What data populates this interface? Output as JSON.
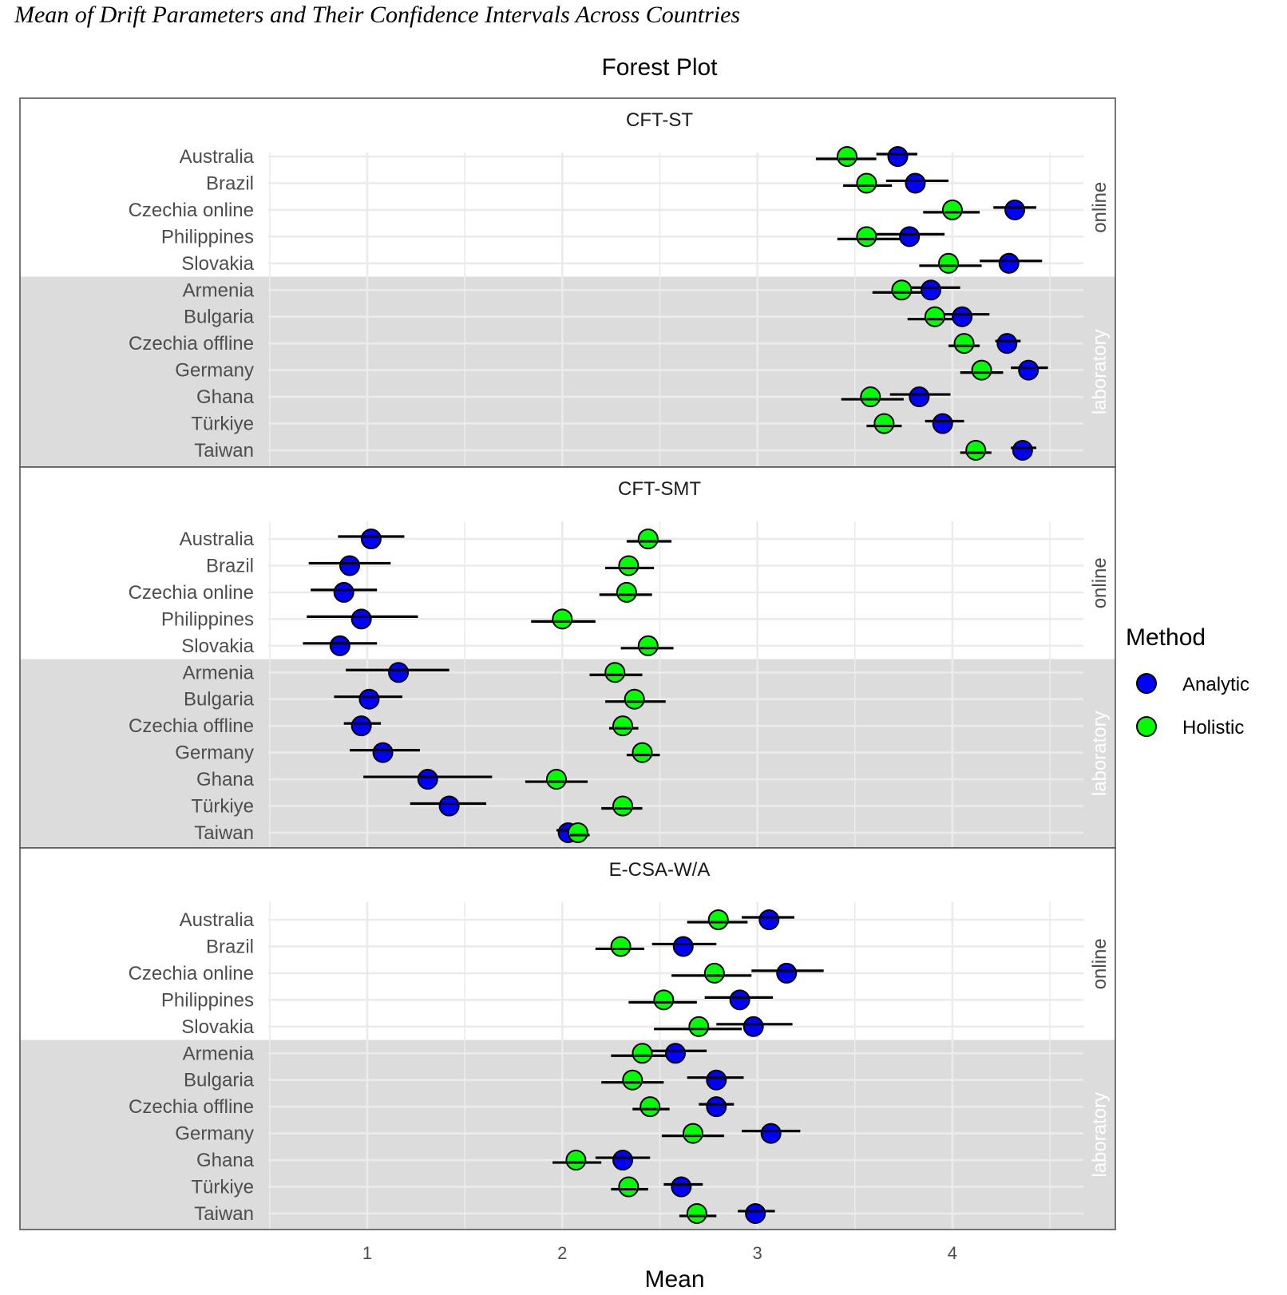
{
  "page_title": "Mean of Drift Parameters and Their Confidence Intervals Across Countries",
  "chart_data": {
    "type": "scatter",
    "subtype": "forest-plot",
    "title": "Forest Plot",
    "xlabel": "Mean",
    "ylabel": "",
    "xlim": [
      0.5,
      4.67
    ],
    "x_ticks": [
      1,
      2,
      3,
      4
    ],
    "grid": true,
    "legend": {
      "title": "Method",
      "placement": "right",
      "entries": [
        {
          "name": "Analytic",
          "color": "#0000ff"
        },
        {
          "name": "Holistic",
          "color": "#00ff00"
        }
      ]
    },
    "row_groups": [
      {
        "name": "online",
        "rows": [
          "Australia",
          "Brazil",
          "Czechia online",
          "Philippines",
          "Slovakia"
        ]
      },
      {
        "name": "laboratory",
        "rows": [
          "Armenia",
          "Bulgaria",
          "Czechia offline",
          "Germany",
          "Ghana",
          "Türkiye",
          "Taiwan"
        ]
      }
    ],
    "panels": [
      {
        "name": "CFT-ST",
        "series": [
          {
            "name": "Analytic",
            "points": [
              {
                "row": "Australia",
                "mean": 3.72,
                "lo": 3.61,
                "hi": 3.82
              },
              {
                "row": "Brazil",
                "mean": 3.81,
                "lo": 3.66,
                "hi": 3.98
              },
              {
                "row": "Czechia online",
                "mean": 4.32,
                "lo": 4.21,
                "hi": 4.43
              },
              {
                "row": "Philippines",
                "mean": 3.78,
                "lo": 3.61,
                "hi": 3.96
              },
              {
                "row": "Slovakia",
                "mean": 4.29,
                "lo": 4.14,
                "hi": 4.46
              },
              {
                "row": "Armenia",
                "mean": 3.89,
                "lo": 3.72,
                "hi": 4.04
              },
              {
                "row": "Bulgaria",
                "mean": 4.05,
                "lo": 3.88,
                "hi": 4.19
              },
              {
                "row": "Czechia offline",
                "mean": 4.28,
                "lo": 4.22,
                "hi": 4.35
              },
              {
                "row": "Germany",
                "mean": 4.39,
                "lo": 4.3,
                "hi": 4.49
              },
              {
                "row": "Ghana",
                "mean": 3.83,
                "lo": 3.68,
                "hi": 3.99
              },
              {
                "row": "Türkiye",
                "mean": 3.95,
                "lo": 3.86,
                "hi": 4.06
              },
              {
                "row": "Taiwan",
                "mean": 4.36,
                "lo": 4.3,
                "hi": 4.43
              }
            ]
          },
          {
            "name": "Holistic",
            "points": [
              {
                "row": "Australia",
                "mean": 3.46,
                "lo": 3.3,
                "hi": 3.61
              },
              {
                "row": "Brazil",
                "mean": 3.56,
                "lo": 3.44,
                "hi": 3.69
              },
              {
                "row": "Czechia online",
                "mean": 4.0,
                "lo": 3.85,
                "hi": 4.14
              },
              {
                "row": "Philippines",
                "mean": 3.56,
                "lo": 3.41,
                "hi": 3.73
              },
              {
                "row": "Slovakia",
                "mean": 3.98,
                "lo": 3.83,
                "hi": 4.15
              },
              {
                "row": "Armenia",
                "mean": 3.74,
                "lo": 3.59,
                "hi": 3.89
              },
              {
                "row": "Bulgaria",
                "mean": 3.91,
                "lo": 3.77,
                "hi": 4.05
              },
              {
                "row": "Czechia offline",
                "mean": 4.06,
                "lo": 3.98,
                "hi": 4.14
              },
              {
                "row": "Germany",
                "mean": 4.15,
                "lo": 4.04,
                "hi": 4.26
              },
              {
                "row": "Ghana",
                "mean": 3.58,
                "lo": 3.43,
                "hi": 3.75
              },
              {
                "row": "Türkiye",
                "mean": 3.65,
                "lo": 3.56,
                "hi": 3.74
              },
              {
                "row": "Taiwan",
                "mean": 4.12,
                "lo": 4.04,
                "hi": 4.2
              }
            ]
          }
        ]
      },
      {
        "name": "CFT-SMT",
        "series": [
          {
            "name": "Analytic",
            "points": [
              {
                "row": "Australia",
                "mean": 1.02,
                "lo": 0.85,
                "hi": 1.19
              },
              {
                "row": "Brazil",
                "mean": 0.91,
                "lo": 0.7,
                "hi": 1.12
              },
              {
                "row": "Czechia online",
                "mean": 0.88,
                "lo": 0.71,
                "hi": 1.05
              },
              {
                "row": "Philippines",
                "mean": 0.97,
                "lo": 0.69,
                "hi": 1.26
              },
              {
                "row": "Slovakia",
                "mean": 0.86,
                "lo": 0.67,
                "hi": 1.05
              },
              {
                "row": "Armenia",
                "mean": 1.16,
                "lo": 0.89,
                "hi": 1.42
              },
              {
                "row": "Bulgaria",
                "mean": 1.01,
                "lo": 0.83,
                "hi": 1.18
              },
              {
                "row": "Czechia offline",
                "mean": 0.97,
                "lo": 0.88,
                "hi": 1.07
              },
              {
                "row": "Germany",
                "mean": 1.08,
                "lo": 0.91,
                "hi": 1.27
              },
              {
                "row": "Ghana",
                "mean": 1.31,
                "lo": 0.98,
                "hi": 1.64
              },
              {
                "row": "Türkiye",
                "mean": 1.42,
                "lo": 1.22,
                "hi": 1.61
              },
              {
                "row": "Taiwan",
                "mean": 2.03,
                "lo": 1.97,
                "hi": 2.09
              }
            ]
          },
          {
            "name": "Holistic",
            "points": [
              {
                "row": "Australia",
                "mean": 2.44,
                "lo": 2.33,
                "hi": 2.56
              },
              {
                "row": "Brazil",
                "mean": 2.34,
                "lo": 2.22,
                "hi": 2.47
              },
              {
                "row": "Czechia online",
                "mean": 2.33,
                "lo": 2.19,
                "hi": 2.46
              },
              {
                "row": "Philippines",
                "mean": 2.0,
                "lo": 1.84,
                "hi": 2.17
              },
              {
                "row": "Slovakia",
                "mean": 2.44,
                "lo": 2.3,
                "hi": 2.57
              },
              {
                "row": "Armenia",
                "mean": 2.27,
                "lo": 2.14,
                "hi": 2.41
              },
              {
                "row": "Bulgaria",
                "mean": 2.37,
                "lo": 2.22,
                "hi": 2.53
              },
              {
                "row": "Czechia offline",
                "mean": 2.31,
                "lo": 2.24,
                "hi": 2.39
              },
              {
                "row": "Germany",
                "mean": 2.41,
                "lo": 2.33,
                "hi": 2.5
              },
              {
                "row": "Ghana",
                "mean": 1.97,
                "lo": 1.81,
                "hi": 2.13
              },
              {
                "row": "Türkiye",
                "mean": 2.31,
                "lo": 2.2,
                "hi": 2.41
              },
              {
                "row": "Taiwan",
                "mean": 2.08,
                "lo": 2.03,
                "hi": 2.14
              }
            ]
          }
        ]
      },
      {
        "name": "E-CSA-W/A",
        "series": [
          {
            "name": "Analytic",
            "points": [
              {
                "row": "Australia",
                "mean": 3.06,
                "lo": 2.92,
                "hi": 3.19
              },
              {
                "row": "Brazil",
                "mean": 2.62,
                "lo": 2.46,
                "hi": 2.79
              },
              {
                "row": "Czechia online",
                "mean": 3.15,
                "lo": 2.97,
                "hi": 3.34
              },
              {
                "row": "Philippines",
                "mean": 2.91,
                "lo": 2.73,
                "hi": 3.08
              },
              {
                "row": "Slovakia",
                "mean": 2.98,
                "lo": 2.79,
                "hi": 3.18
              },
              {
                "row": "Armenia",
                "mean": 2.58,
                "lo": 2.4,
                "hi": 2.74
              },
              {
                "row": "Bulgaria",
                "mean": 2.79,
                "lo": 2.64,
                "hi": 2.93
              },
              {
                "row": "Czechia offline",
                "mean": 2.79,
                "lo": 2.7,
                "hi": 2.88
              },
              {
                "row": "Germany",
                "mean": 3.07,
                "lo": 2.92,
                "hi": 3.22
              },
              {
                "row": "Ghana",
                "mean": 2.31,
                "lo": 2.17,
                "hi": 2.45
              },
              {
                "row": "Türkiye",
                "mean": 2.61,
                "lo": 2.52,
                "hi": 2.72
              },
              {
                "row": "Taiwan",
                "mean": 2.99,
                "lo": 2.9,
                "hi": 3.09
              }
            ]
          },
          {
            "name": "Holistic",
            "points": [
              {
                "row": "Australia",
                "mean": 2.8,
                "lo": 2.64,
                "hi": 2.95
              },
              {
                "row": "Brazil",
                "mean": 2.3,
                "lo": 2.17,
                "hi": 2.42
              },
              {
                "row": "Czechia online",
                "mean": 2.78,
                "lo": 2.56,
                "hi": 2.97
              },
              {
                "row": "Philippines",
                "mean": 2.52,
                "lo": 2.34,
                "hi": 2.69
              },
              {
                "row": "Slovakia",
                "mean": 2.7,
                "lo": 2.47,
                "hi": 2.92
              },
              {
                "row": "Armenia",
                "mean": 2.41,
                "lo": 2.25,
                "hi": 2.53
              },
              {
                "row": "Bulgaria",
                "mean": 2.36,
                "lo": 2.2,
                "hi": 2.52
              },
              {
                "row": "Czechia offline",
                "mean": 2.45,
                "lo": 2.36,
                "hi": 2.55
              },
              {
                "row": "Germany",
                "mean": 2.67,
                "lo": 2.51,
                "hi": 2.83
              },
              {
                "row": "Ghana",
                "mean": 2.07,
                "lo": 1.95,
                "hi": 2.2
              },
              {
                "row": "Türkiye",
                "mean": 2.34,
                "lo": 2.25,
                "hi": 2.44
              },
              {
                "row": "Taiwan",
                "mean": 2.69,
                "lo": 2.6,
                "hi": 2.79
              }
            ]
          }
        ]
      }
    ]
  },
  "colors": {
    "analytic": "#0000ff",
    "holistic": "#00ff00",
    "group_shade": "#dcdcdc",
    "gridline": "#ebebeb",
    "panel_border": "#555555"
  }
}
